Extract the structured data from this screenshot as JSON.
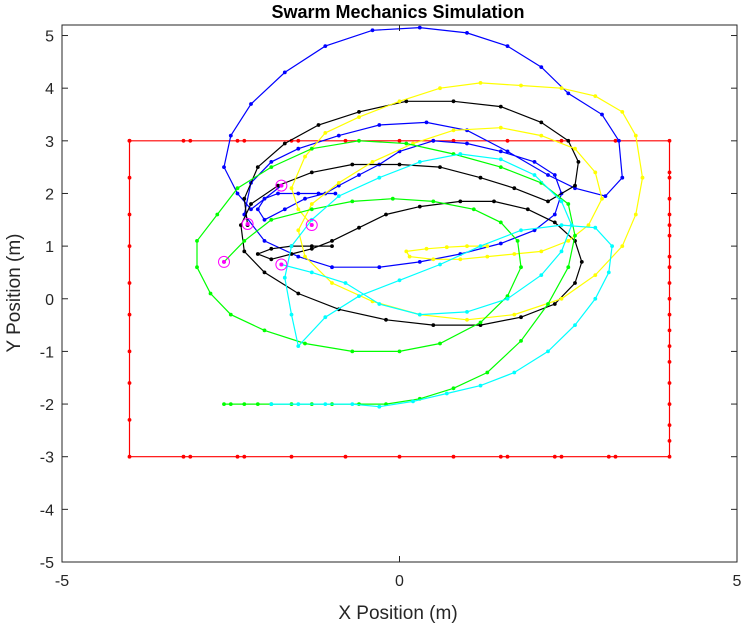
{
  "chart_data": {
    "type": "line",
    "title": "Swarm Mechanics Simulation",
    "xlabel": "X Position (m)",
    "ylabel": "Y Position (m)",
    "xlim": [
      -5,
      5
    ],
    "ylim": [
      -5,
      5.2
    ],
    "xticks": [
      -5,
      0,
      5
    ],
    "yticks": [
      -5,
      -4,
      -3,
      -2,
      -1,
      0,
      1,
      2,
      3,
      4,
      5
    ],
    "grid": false,
    "legend": "none",
    "series": [
      {
        "color": "#ff0000",
        "marker": "dot",
        "points": [
          [
            -4,
            3
          ],
          [
            -3.2,
            3
          ],
          [
            -3.1,
            3
          ],
          [
            -2.4,
            3
          ],
          [
            -2.3,
            3
          ],
          [
            -1.6,
            3
          ],
          [
            -1.5,
            3
          ],
          [
            -0.8,
            3
          ],
          [
            0,
            3
          ],
          [
            0.5,
            3
          ],
          [
            0.8,
            3
          ],
          [
            1.6,
            3
          ],
          [
            2.4,
            3
          ],
          [
            3.2,
            3
          ],
          [
            4,
            3
          ],
          [
            4,
            2.4
          ],
          [
            4,
            2.3
          ],
          [
            4,
            1.9
          ],
          [
            4,
            1.6
          ],
          [
            4,
            1.4
          ],
          [
            4,
            1.2
          ],
          [
            4,
            0.8
          ],
          [
            4,
            0.6
          ],
          [
            4,
            0.3
          ],
          [
            4,
            0
          ],
          [
            4,
            -0.3
          ],
          [
            4,
            -0.6
          ],
          [
            4,
            -0.9
          ],
          [
            4,
            -1.2
          ],
          [
            4,
            -1.6
          ],
          [
            4,
            -2
          ],
          [
            4,
            -2.4
          ],
          [
            4,
            -2.7
          ],
          [
            4,
            -3
          ],
          [
            3.2,
            -3
          ],
          [
            3.1,
            -3
          ],
          [
            2.4,
            -3
          ],
          [
            2.3,
            -3
          ],
          [
            1.6,
            -3
          ],
          [
            1.5,
            -3
          ],
          [
            0.8,
            -3
          ],
          [
            0,
            -3
          ],
          [
            -0.8,
            -3
          ],
          [
            -1.6,
            -3
          ],
          [
            -2.3,
            -3
          ],
          [
            -2.4,
            -3
          ],
          [
            -3.1,
            -3
          ],
          [
            -3.2,
            -3
          ],
          [
            -4,
            -3
          ],
          [
            -4,
            -2.3
          ],
          [
            -4,
            -1.6
          ],
          [
            -4,
            -1
          ],
          [
            -4,
            -0.3
          ],
          [
            -4,
            0.3
          ],
          [
            -4,
            1
          ],
          [
            -4,
            1.6
          ],
          [
            -4,
            2.3
          ],
          [
            -4,
            3
          ]
        ]
      },
      {
        "color": "#0000ff",
        "marker": "dot",
        "points": [
          [
            -0.95,
            2
          ],
          [
            -1.2,
            2
          ],
          [
            -1.5,
            2
          ],
          [
            -1.8,
            2
          ],
          [
            -2.0,
            1.9
          ],
          [
            -2.1,
            1.7
          ],
          [
            -2.0,
            1.5
          ],
          [
            -1.7,
            1.7
          ],
          [
            -1.4,
            1.9
          ],
          [
            -1.1,
            2.0
          ],
          [
            -0.9,
            2.15
          ],
          [
            -0.6,
            2.35
          ],
          [
            -0.3,
            2.55
          ],
          [
            0,
            2.8
          ],
          [
            0.5,
            3.0
          ],
          [
            1.0,
            2.95
          ],
          [
            1.5,
            2.8
          ],
          [
            2.0,
            2.6
          ],
          [
            2.3,
            2.35
          ],
          [
            2.4,
            2.0
          ],
          [
            2.3,
            1.6
          ],
          [
            2.0,
            1.3
          ],
          [
            1.5,
            1.05
          ],
          [
            0.9,
            0.85
          ],
          [
            0.3,
            0.7
          ],
          [
            -0.3,
            0.6
          ],
          [
            -1.0,
            0.6
          ],
          [
            -1.5,
            0.8
          ],
          [
            -2.0,
            1.1
          ],
          [
            -2.3,
            1.6
          ],
          [
            -2.2,
            2.2
          ],
          [
            -1.9,
            2.6
          ],
          [
            -1.5,
            2.85
          ],
          [
            -0.9,
            3.1
          ],
          [
            -0.3,
            3.3
          ],
          [
            0.4,
            3.35
          ],
          [
            1.0,
            3.2
          ],
          [
            1.6,
            2.8
          ],
          [
            2.2,
            2.35
          ],
          [
            2.6,
            2.1
          ],
          [
            3.05,
            1.95
          ],
          [
            3.3,
            2.3
          ],
          [
            3.25,
            3.0
          ],
          [
            3.0,
            3.5
          ],
          [
            2.5,
            3.9
          ],
          [
            2.1,
            4.4
          ],
          [
            1.6,
            4.8
          ],
          [
            1.0,
            5.05
          ],
          [
            0.3,
            5.15
          ],
          [
            -0.4,
            5.1
          ],
          [
            -1.1,
            4.8
          ],
          [
            -1.7,
            4.3
          ],
          [
            -2.2,
            3.7
          ],
          [
            -2.5,
            3.1
          ],
          [
            -2.6,
            2.5
          ],
          [
            -2.4,
            2.0
          ],
          [
            -2.2,
            1.7
          ],
          [
            -1.75,
            2.15
          ]
        ]
      },
      {
        "color": "#000000",
        "marker": "dot",
        "points": [
          [
            -1.0,
            1.0
          ],
          [
            -1.3,
            1.0
          ],
          [
            -1.6,
            1.0
          ],
          [
            -1.9,
            0.95
          ],
          [
            -2.1,
            0.85
          ],
          [
            -1.9,
            0.75
          ],
          [
            -1.6,
            0.85
          ],
          [
            -1.3,
            0.95
          ],
          [
            -1.0,
            1.1
          ],
          [
            -0.6,
            1.35
          ],
          [
            -0.2,
            1.6
          ],
          [
            0.3,
            1.75
          ],
          [
            0.9,
            1.85
          ],
          [
            1.4,
            1.85
          ],
          [
            1.9,
            1.7
          ],
          [
            2.3,
            1.45
          ],
          [
            2.6,
            1.1
          ],
          [
            2.7,
            0.7
          ],
          [
            2.6,
            0.3
          ],
          [
            2.3,
            -0.1
          ],
          [
            1.8,
            -0.35
          ],
          [
            1.2,
            -0.5
          ],
          [
            0.5,
            -0.5
          ],
          [
            -0.2,
            -0.4
          ],
          [
            -0.9,
            -0.2
          ],
          [
            -1.5,
            0.1
          ],
          [
            -2.0,
            0.5
          ],
          [
            -2.3,
            0.9
          ],
          [
            -2.35,
            1.4
          ],
          [
            -2.2,
            1.8
          ],
          [
            -1.8,
            2.15
          ],
          [
            -1.3,
            2.4
          ],
          [
            -0.7,
            2.55
          ],
          [
            0,
            2.55
          ],
          [
            0.6,
            2.5
          ],
          [
            1.2,
            2.3
          ],
          [
            1.7,
            2.1
          ],
          [
            2.2,
            1.85
          ],
          [
            2.6,
            2.15
          ],
          [
            2.65,
            2.6
          ],
          [
            2.5,
            3.0
          ],
          [
            2.1,
            3.35
          ],
          [
            1.5,
            3.65
          ],
          [
            0.8,
            3.75
          ],
          [
            0.1,
            3.75
          ],
          [
            -0.6,
            3.55
          ],
          [
            -1.2,
            3.3
          ],
          [
            -1.7,
            2.95
          ],
          [
            -2.1,
            2.5
          ],
          [
            -2.3,
            1.9
          ],
          [
            -2.25,
            1.4
          ]
        ]
      },
      {
        "color": "#ffff00",
        "marker": "dot",
        "points": [
          [
            1.3,
            1.0
          ],
          [
            1.0,
            1.0
          ],
          [
            0.7,
            0.98
          ],
          [
            0.4,
            0.95
          ],
          [
            0.1,
            0.9
          ],
          [
            0.15,
            0.8
          ],
          [
            0.5,
            0.75
          ],
          [
            0.9,
            0.75
          ],
          [
            1.3,
            0.8
          ],
          [
            1.7,
            0.85
          ],
          [
            2.1,
            0.9
          ],
          [
            2.5,
            1.1
          ],
          [
            2.8,
            1.4
          ],
          [
            3.0,
            1.9
          ],
          [
            2.9,
            2.4
          ],
          [
            2.6,
            2.85
          ],
          [
            2.1,
            3.1
          ],
          [
            1.5,
            3.25
          ],
          [
            0.8,
            3.2
          ],
          [
            0.2,
            2.95
          ],
          [
            -0.4,
            2.6
          ],
          [
            -0.9,
            2.2
          ],
          [
            -1.3,
            1.8
          ],
          [
            -1.5,
            1.3
          ],
          [
            -1.4,
            0.8
          ],
          [
            -1.0,
            0.3
          ],
          [
            -0.4,
            -0.05
          ],
          [
            0.3,
            -0.3
          ],
          [
            1.0,
            -0.4
          ],
          [
            1.7,
            -0.3
          ],
          [
            2.4,
            0
          ],
          [
            2.9,
            0.45
          ],
          [
            3.3,
            1.0
          ],
          [
            3.5,
            1.6
          ],
          [
            3.6,
            2.3
          ],
          [
            3.5,
            3.1
          ],
          [
            3.3,
            3.55
          ],
          [
            2.9,
            3.85
          ],
          [
            2.4,
            4.0
          ],
          [
            1.8,
            4.05
          ],
          [
            1.2,
            4.1
          ],
          [
            0.6,
            4.0
          ],
          [
            0,
            3.75
          ],
          [
            -0.6,
            3.45
          ],
          [
            -1.1,
            3.15
          ],
          [
            -1.4,
            2.7
          ],
          [
            -1.6,
            2.1
          ],
          [
            -1.5,
            1.7
          ],
          [
            -1.3,
            1.4
          ]
        ]
      },
      {
        "color": "#00ff00",
        "marker": "dot",
        "points": [
          [
            -2.6,
            -2.0
          ],
          [
            -2.5,
            -2.0
          ],
          [
            -2.3,
            -2.0
          ],
          [
            -2.1,
            -2.0
          ],
          [
            -1.9,
            -2.0
          ],
          [
            -1.6,
            -2.0
          ],
          [
            -1.3,
            -2.0
          ],
          [
            -1.0,
            -2.0
          ],
          [
            -0.6,
            -2.0
          ],
          [
            -0.2,
            -2.0
          ],
          [
            0.3,
            -1.9
          ],
          [
            0.8,
            -1.7
          ],
          [
            1.3,
            -1.4
          ],
          [
            1.8,
            -0.8
          ],
          [
            2.2,
            -0.1
          ],
          [
            2.5,
            0.6
          ],
          [
            2.6,
            1.2
          ],
          [
            2.5,
            1.8
          ],
          [
            2.1,
            2.2
          ],
          [
            1.5,
            2.5
          ],
          [
            0.8,
            2.75
          ],
          [
            0.1,
            2.95
          ],
          [
            -0.6,
            3.0
          ],
          [
            -1.3,
            2.85
          ],
          [
            -1.9,
            2.5
          ],
          [
            -2.4,
            2.1
          ],
          [
            -2.7,
            1.6
          ],
          [
            -3.0,
            1.1
          ],
          [
            -3.0,
            0.6
          ],
          [
            -2.8,
            0.1
          ],
          [
            -2.5,
            -0.3
          ],
          [
            -2.0,
            -0.6
          ],
          [
            -1.4,
            -0.85
          ],
          [
            -0.7,
            -1.0
          ],
          [
            0,
            -1.0
          ],
          [
            0.6,
            -0.85
          ],
          [
            1.2,
            -0.45
          ],
          [
            1.6,
            0.05
          ],
          [
            1.8,
            0.6
          ],
          [
            1.75,
            1.1
          ],
          [
            1.5,
            1.45
          ],
          [
            1.1,
            1.7
          ],
          [
            0.5,
            1.85
          ],
          [
            -0.1,
            1.9
          ],
          [
            -0.7,
            1.85
          ],
          [
            -1.3,
            1.7
          ],
          [
            -1.9,
            1.5
          ],
          [
            -2.3,
            1.1
          ],
          [
            -2.6,
            0.7
          ]
        ]
      },
      {
        "color": "#00ffff",
        "marker": "dot",
        "points": [
          [
            -1.9,
            -2.0
          ],
          [
            -1.5,
            -2.0
          ],
          [
            -1.1,
            -2.0
          ],
          [
            -0.7,
            -2.0
          ],
          [
            -0.3,
            -2.05
          ],
          [
            0.2,
            -1.95
          ],
          [
            0.7,
            -1.8
          ],
          [
            1.2,
            -1.65
          ],
          [
            1.7,
            -1.4
          ],
          [
            2.2,
            -1.0
          ],
          [
            2.6,
            -0.5
          ],
          [
            2.9,
            0
          ],
          [
            3.1,
            0.5
          ],
          [
            3.15,
            1.0
          ],
          [
            2.9,
            1.35
          ],
          [
            2.4,
            1.4
          ],
          [
            1.8,
            1.3
          ],
          [
            1.2,
            1.0
          ],
          [
            0.6,
            0.65
          ],
          [
            0,
            0.35
          ],
          [
            -0.6,
            0.05
          ],
          [
            -1.1,
            -0.35
          ],
          [
            -1.5,
            -0.9
          ],
          [
            -1.6,
            -0.3
          ],
          [
            -1.7,
            0.4
          ],
          [
            -1.6,
            1.0
          ],
          [
            -1.3,
            1.5
          ],
          [
            -0.9,
            1.95
          ],
          [
            -0.3,
            2.3
          ],
          [
            0.3,
            2.6
          ],
          [
            0.9,
            2.75
          ],
          [
            1.5,
            2.65
          ],
          [
            2.0,
            2.35
          ],
          [
            2.4,
            1.85
          ],
          [
            2.55,
            1.4
          ],
          [
            2.4,
            0.9
          ],
          [
            2.1,
            0.45
          ],
          [
            1.6,
            0
          ],
          [
            1.0,
            -0.25
          ],
          [
            0.3,
            -0.3
          ],
          [
            -0.3,
            -0.1
          ],
          [
            -0.8,
            0.3
          ],
          [
            -1.3,
            0.5
          ],
          [
            -1.75,
            0.65
          ]
        ]
      }
    ],
    "agents": [
      {
        "x": -1.75,
        "y": 2.15
      },
      {
        "x": -2.25,
        "y": 1.42
      },
      {
        "x": -1.3,
        "y": 1.4
      },
      {
        "x": -2.6,
        "y": 0.7
      },
      {
        "x": -1.75,
        "y": 0.65
      }
    ],
    "agent_color": "#ff00ff"
  }
}
